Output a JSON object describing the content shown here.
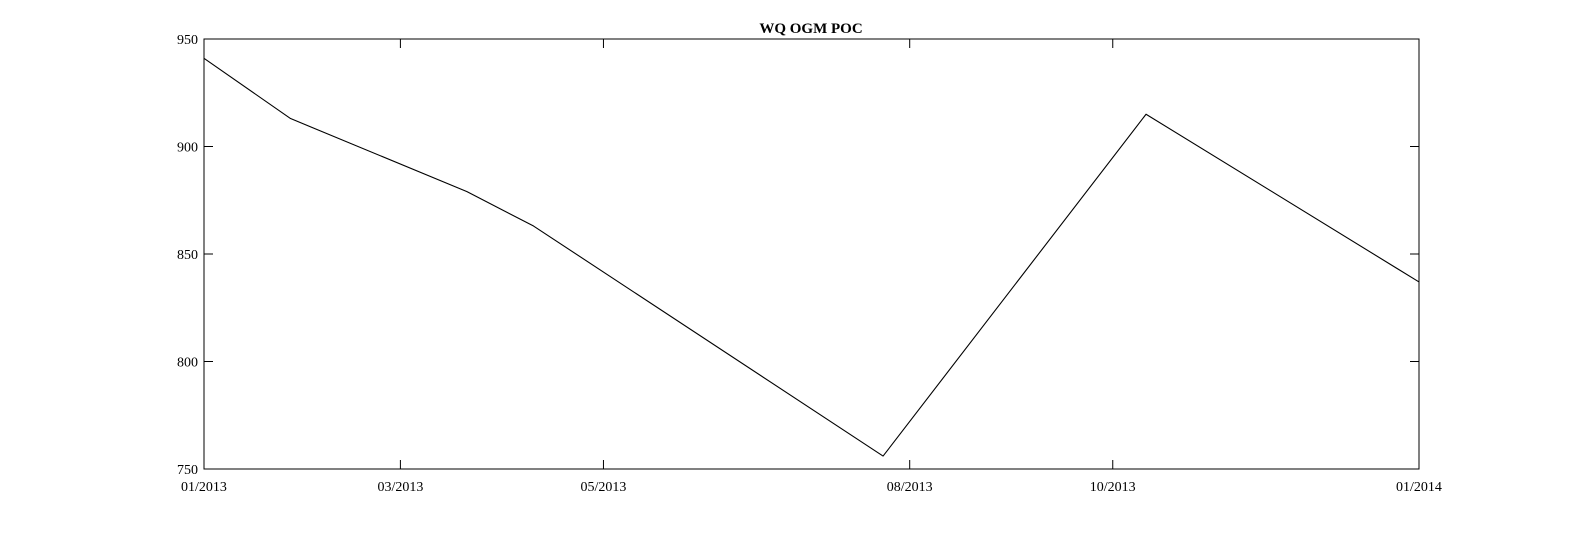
{
  "chart_data": {
    "type": "line",
    "title": "WQ OGM POC",
    "xlabel": "",
    "ylabel": "",
    "x_tick_labels": [
      "01/2013",
      "03/2013",
      "05/2013",
      "08/2013",
      "10/2013",
      "01/2014"
    ],
    "x_tick_dates": [
      "2013-01-01",
      "2013-03-01",
      "2013-05-01",
      "2013-08-01",
      "2013-10-01",
      "2014-01-01"
    ],
    "xlim": [
      "2013-01-01",
      "2014-01-01"
    ],
    "ylim": [
      750,
      950
    ],
    "y_ticks": [
      750,
      800,
      850,
      900,
      950
    ],
    "grid": false,
    "series": [
      {
        "x": [
          "2013-01-01",
          "2013-01-27",
          "2013-03-21",
          "2013-04-10",
          "2013-07-24",
          "2013-10-11",
          "2014-01-01"
        ],
        "y": [
          941,
          913,
          879,
          863,
          756,
          915,
          837
        ]
      }
    ],
    "colors": {
      "line": "#000000",
      "axes": "#000000",
      "background": "#ffffff"
    }
  }
}
